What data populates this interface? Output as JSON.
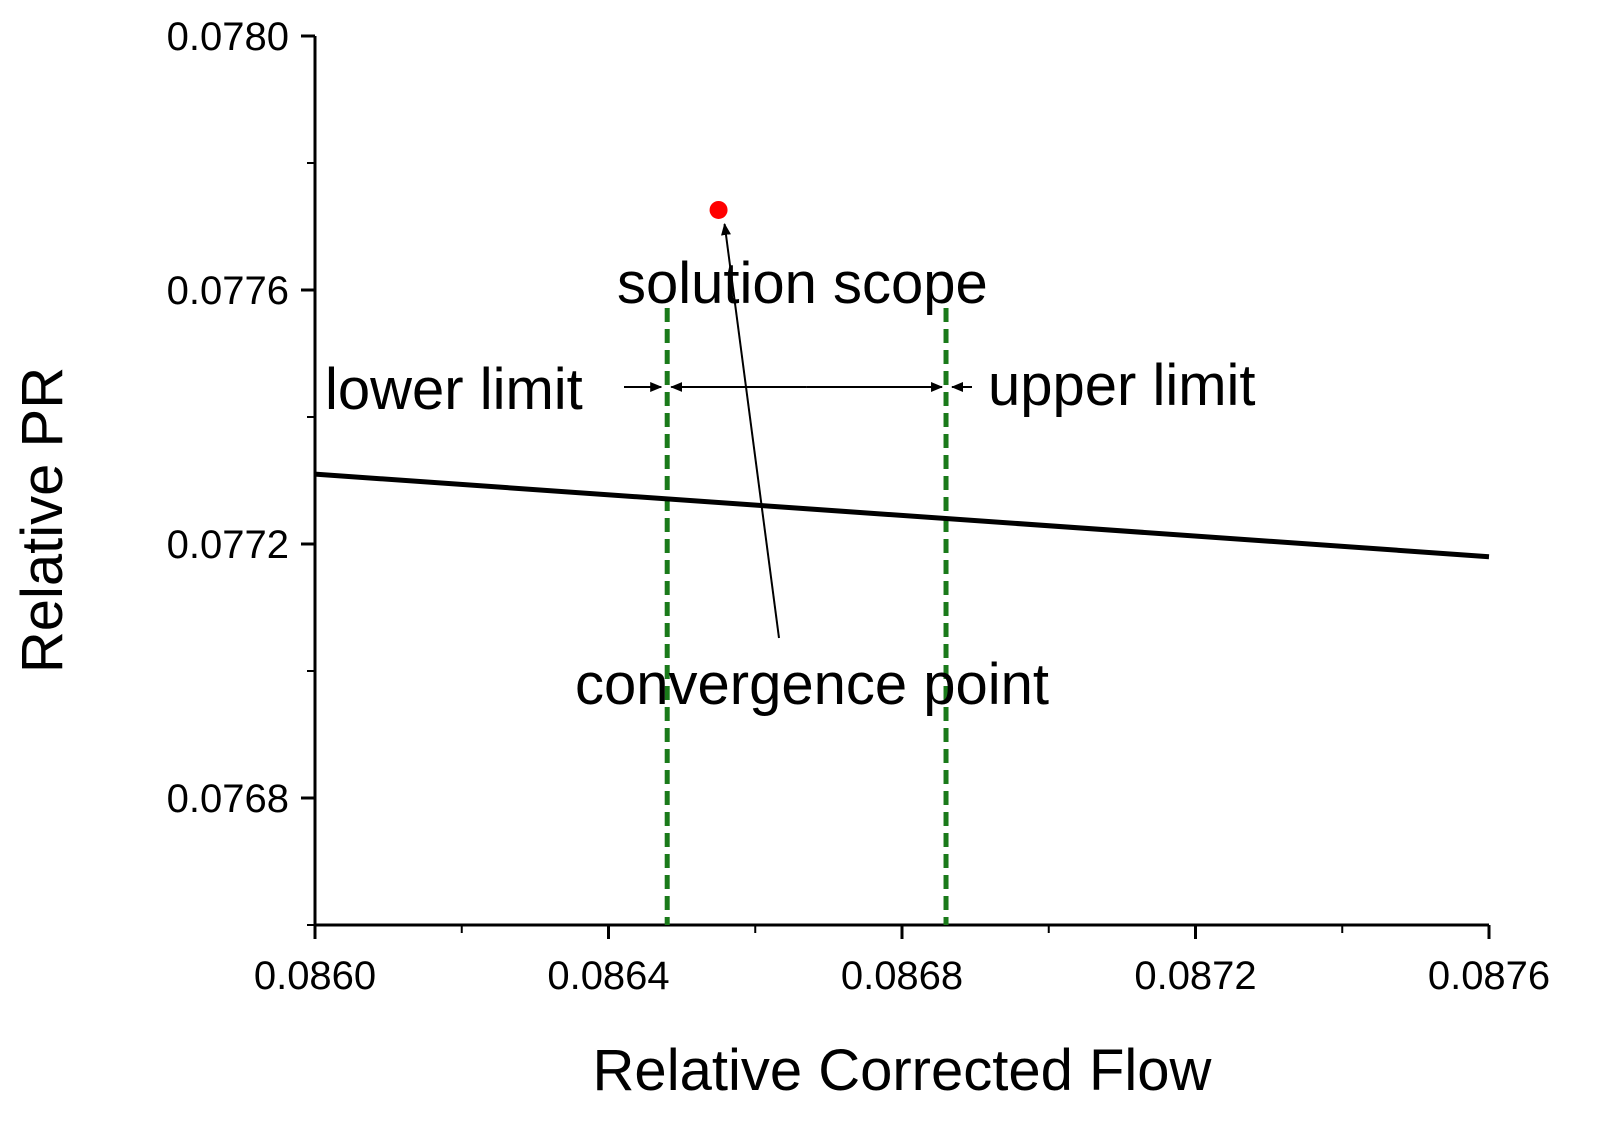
{
  "chart_data": {
    "type": "line",
    "xlabel": "Relative Corrected Flow",
    "ylabel": "Relative PR",
    "xlim": [
      0.086,
      0.0876
    ],
    "ylim": [
      0.0766,
      0.078
    ],
    "x_ticks": [
      "0.0860",
      "0.0864",
      "0.0868",
      "0.0872",
      "0.0876"
    ],
    "y_ticks": [
      "0.0768",
      "0.0772",
      "0.0776",
      "0.0780"
    ],
    "grid": false,
    "series": [
      {
        "x": [
          0.086,
          0.0876
        ],
        "y": [
          0.07731,
          0.07718
        ],
        "color": "#000000"
      }
    ],
    "vertical_lines": [
      {
        "x": 0.08648,
        "color": "#1a7a1a",
        "style": "dashed"
      },
      {
        "x": 0.08686,
        "color": "#1a7a1a",
        "style": "dashed"
      }
    ],
    "highlight_point": {
      "x": 0.08655,
      "y": 0.077726,
      "color": "#ff0000"
    },
    "annotations": {
      "solution_scope": "solution scope",
      "lower_limit": "lower limit",
      "upper_limit": "upper limit",
      "convergence_point": "convergence point"
    }
  }
}
